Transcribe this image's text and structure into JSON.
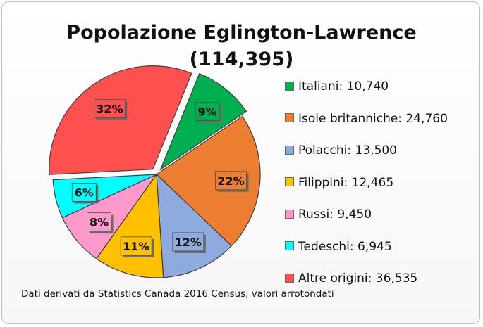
{
  "chart_data": {
    "type": "pie",
    "title": "Popolazione Eglington-Lawrence",
    "subtitle": "(114,395)",
    "slices": [
      {
        "label": "Italiani",
        "value": 10740,
        "percent_label": "9%",
        "legend": "Italiani: 10,740",
        "color": "#00b050",
        "exploded": true
      },
      {
        "label": "Isole britanniche",
        "value": 24760,
        "percent_label": "22%",
        "legend": "Isole britanniche: 24,760",
        "color": "#ed7d31",
        "exploded": false
      },
      {
        "label": "Polacchi",
        "value": 13500,
        "percent_label": "12%",
        "legend": "Polacchi: 13,500",
        "color": "#8faadc",
        "exploded": false
      },
      {
        "label": "Filippini",
        "value": 12465,
        "percent_label": "11%",
        "legend": "Filippini: 12,465",
        "color": "#ffc000",
        "exploded": false
      },
      {
        "label": "Russi",
        "value": 9450,
        "percent_label": "8%",
        "legend": "Russi: 9,450",
        "color": "#ff99cc",
        "exploded": false
      },
      {
        "label": "Tedeschi",
        "value": 6945,
        "percent_label": "6%",
        "legend": "Tedeschi: 6,945",
        "color": "#00ffff",
        "exploded": false
      },
      {
        "label": "Altre origini",
        "value": 36535,
        "percent_label": "32%",
        "legend": "Altre origini: 36,535",
        "color": "#ff5050",
        "exploded": true
      }
    ],
    "legend_position": "right",
    "footnote": "Dati derivati da Statistics Canada 2016 Census, valori arrotondati"
  }
}
